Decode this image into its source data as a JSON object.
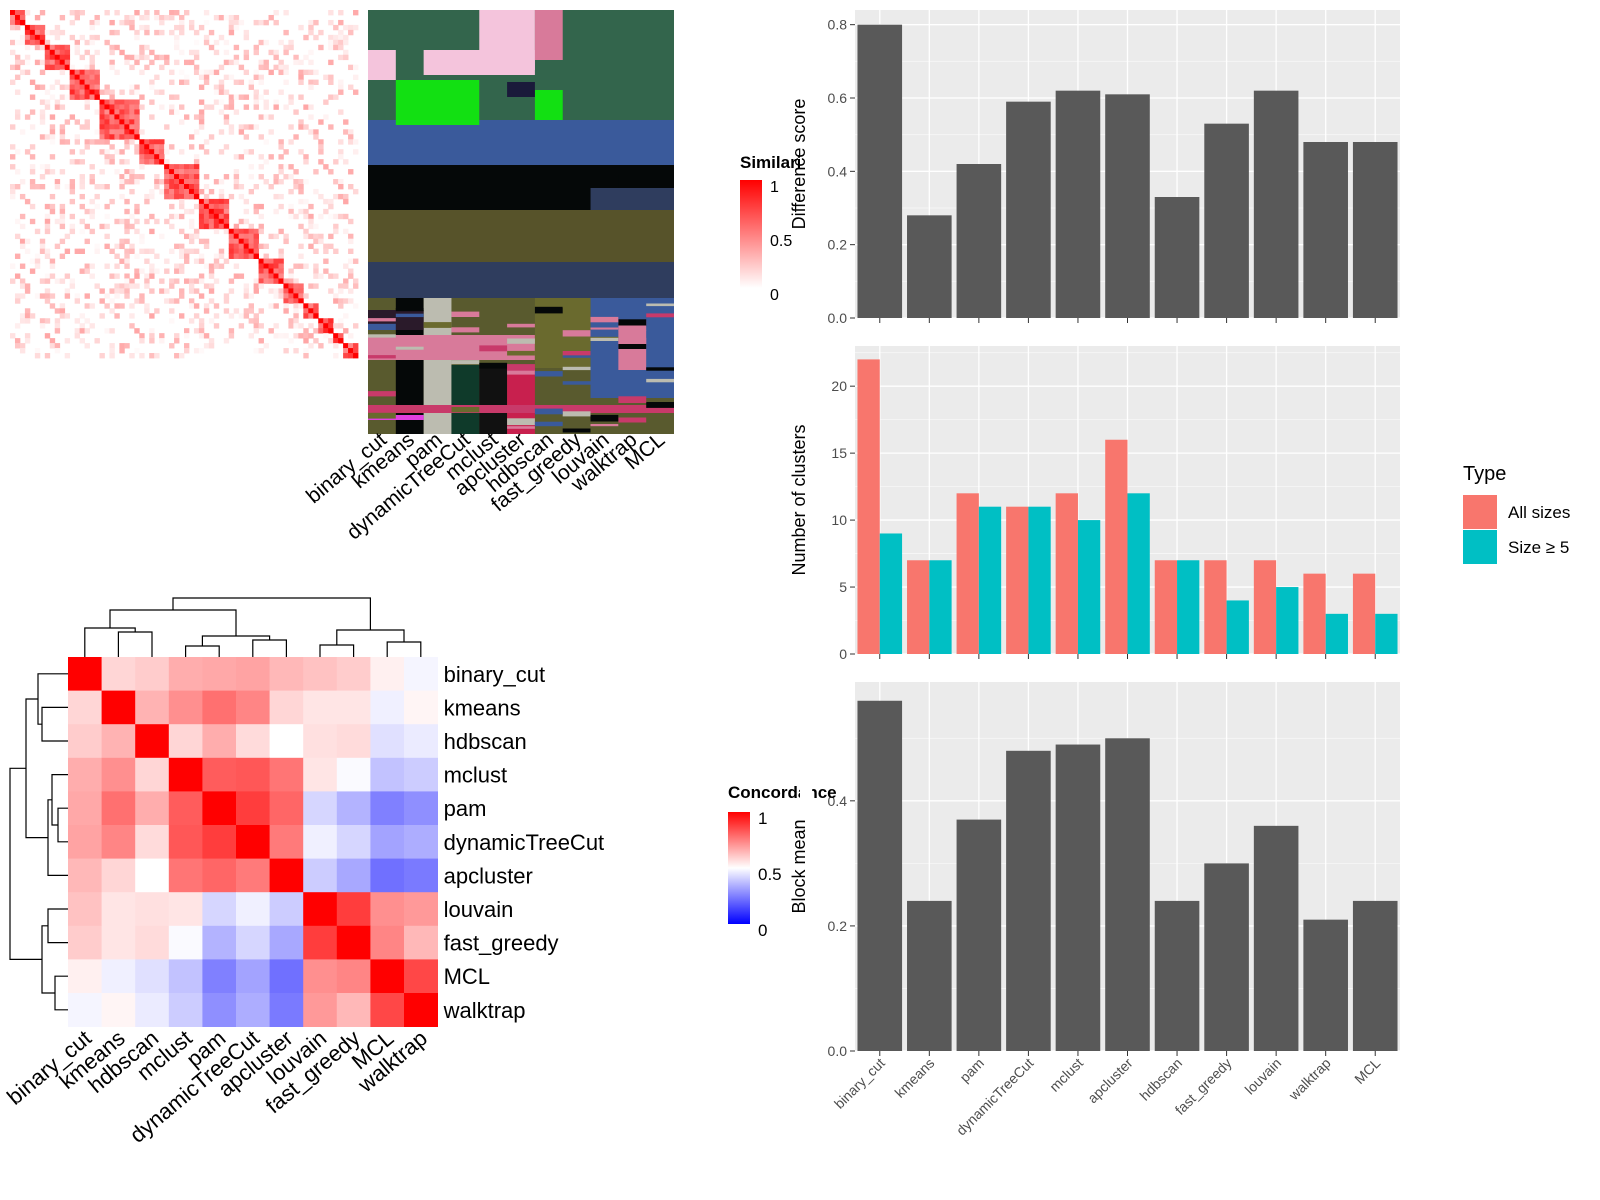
{
  "methods": [
    "binary_cut",
    "kmeans",
    "pam",
    "dynamicTreeCut",
    "mclust",
    "apcluster",
    "hdbscan",
    "fast_greedy",
    "louvain",
    "walktrap",
    "MCL"
  ],
  "similarity_legend": {
    "title": "Similarity",
    "ticks": [
      "1",
      "0.5",
      "0"
    ]
  },
  "concordance": {
    "legend_title": "Concordance",
    "ticks": [
      "1",
      "0.5",
      "0"
    ],
    "order": [
      "binary_cut",
      "kmeans",
      "hdbscan",
      "mclust",
      "pam",
      "dynamicTreeCut",
      "apcluster",
      "louvain",
      "fast_greedy",
      "MCL",
      "walktrap"
    ]
  },
  "fill_legend": {
    "title": "Type",
    "items": [
      "All sizes",
      "Size ≥ 5"
    ],
    "colors": [
      "#F8766D",
      "#00BFC4"
    ]
  },
  "chart_data": [
    {
      "type": "heatmap",
      "title": "",
      "note": "term similarity matrix (values not printed)",
      "color_scale": {
        "low": "#ffffff",
        "high": "#ff0000",
        "range": [
          0,
          1
        ]
      }
    },
    {
      "type": "heatmap",
      "title": "",
      "categories": [
        "binary_cut",
        "kmeans",
        "pam",
        "dynamicTreeCut",
        "mclust",
        "apcluster",
        "hdbscan",
        "fast_greedy",
        "louvain",
        "walktrap",
        "MCL"
      ]
    },
    {
      "type": "bar",
      "ylabel": "Difference score",
      "categories": [
        "binary_cut",
        "kmeans",
        "pam",
        "dynamicTreeCut",
        "mclust",
        "apcluster",
        "hdbscan",
        "fast_greedy",
        "louvain",
        "walktrap",
        "MCL"
      ],
      "values": [
        0.8,
        0.28,
        0.42,
        0.59,
        0.62,
        0.61,
        0.33,
        0.53,
        0.62,
        0.48,
        0.48
      ],
      "ylim": [
        0,
        0.84
      ],
      "yticks": [
        "0.0",
        "0.2",
        "0.4",
        "0.6",
        "0.8"
      ],
      "color": "#595959"
    },
    {
      "type": "bar",
      "ylabel": "Number of clusters",
      "categories": [
        "binary_cut",
        "kmeans",
        "pam",
        "dynamicTreeCut",
        "mclust",
        "apcluster",
        "hdbscan",
        "fast_greedy",
        "louvain",
        "walktrap",
        "MCL"
      ],
      "series": [
        {
          "name": "All sizes",
          "values": [
            22,
            7,
            12,
            11,
            12,
            16,
            7,
            7,
            7,
            6,
            6
          ]
        },
        {
          "name": "Size ≥ 5",
          "values": [
            9,
            7,
            11,
            11,
            10,
            12,
            7,
            4,
            5,
            3,
            3
          ]
        }
      ],
      "ylim": [
        0,
        23
      ],
      "yticks": [
        "0",
        "5",
        "10",
        "15",
        "20"
      ]
    },
    {
      "type": "bar",
      "ylabel": "Block mean",
      "categories": [
        "binary_cut",
        "kmeans",
        "pam",
        "dynamicTreeCut",
        "mclust",
        "apcluster",
        "hdbscan",
        "fast_greedy",
        "louvain",
        "walktrap",
        "MCL"
      ],
      "values": [
        0.56,
        0.24,
        0.37,
        0.48,
        0.49,
        0.5,
        0.24,
        0.3,
        0.36,
        0.21,
        0.24
      ],
      "ylim": [
        0,
        0.59
      ],
      "yticks": [
        "0.0",
        "0.2",
        "0.4"
      ],
      "color": "#595959"
    },
    {
      "type": "heatmap",
      "legend": "Concordance",
      "rows": [
        "binary_cut",
        "kmeans",
        "hdbscan",
        "mclust",
        "pam",
        "dynamicTreeCut",
        "apcluster",
        "louvain",
        "fast_greedy",
        "MCL",
        "walktrap"
      ],
      "cols": [
        "binary_cut",
        "kmeans",
        "hdbscan",
        "mclust",
        "pam",
        "dynamicTreeCut",
        "apcluster",
        "louvain",
        "fast_greedy",
        "MCL",
        "walktrap"
      ],
      "values": [
        [
          1.0,
          0.58,
          0.6,
          0.66,
          0.67,
          0.68,
          0.64,
          0.62,
          0.6,
          0.53,
          0.48
        ],
        [
          0.58,
          1.0,
          0.65,
          0.72,
          0.78,
          0.74,
          0.58,
          0.55,
          0.55,
          0.47,
          0.52
        ],
        [
          0.6,
          0.65,
          1.0,
          0.58,
          0.66,
          0.57,
          0.5,
          0.56,
          0.57,
          0.44,
          0.46
        ],
        [
          0.66,
          0.72,
          0.58,
          1.0,
          0.82,
          0.83,
          0.77,
          0.55,
          0.49,
          0.38,
          0.4
        ],
        [
          0.67,
          0.78,
          0.66,
          0.82,
          1.0,
          0.88,
          0.8,
          0.42,
          0.35,
          0.25,
          0.28
        ],
        [
          0.68,
          0.74,
          0.57,
          0.83,
          0.88,
          1.0,
          0.76,
          0.47,
          0.42,
          0.32,
          0.34
        ],
        [
          0.64,
          0.58,
          0.5,
          0.77,
          0.8,
          0.76,
          1.0,
          0.4,
          0.33,
          0.22,
          0.24
        ],
        [
          0.62,
          0.55,
          0.56,
          0.55,
          0.42,
          0.47,
          0.4,
          1.0,
          0.88,
          0.72,
          0.7
        ],
        [
          0.6,
          0.55,
          0.57,
          0.49,
          0.35,
          0.42,
          0.33,
          0.88,
          1.0,
          0.74,
          0.64
        ],
        [
          0.53,
          0.47,
          0.44,
          0.38,
          0.25,
          0.32,
          0.22,
          0.72,
          0.74,
          1.0,
          0.86
        ],
        [
          0.48,
          0.52,
          0.46,
          0.4,
          0.28,
          0.34,
          0.24,
          0.7,
          0.64,
          0.86,
          1.0
        ]
      ],
      "color_scale": {
        "low": "#0000ff",
        "mid": "#ffffff",
        "high": "#ff0000",
        "range": [
          0,
          1
        ]
      }
    }
  ]
}
